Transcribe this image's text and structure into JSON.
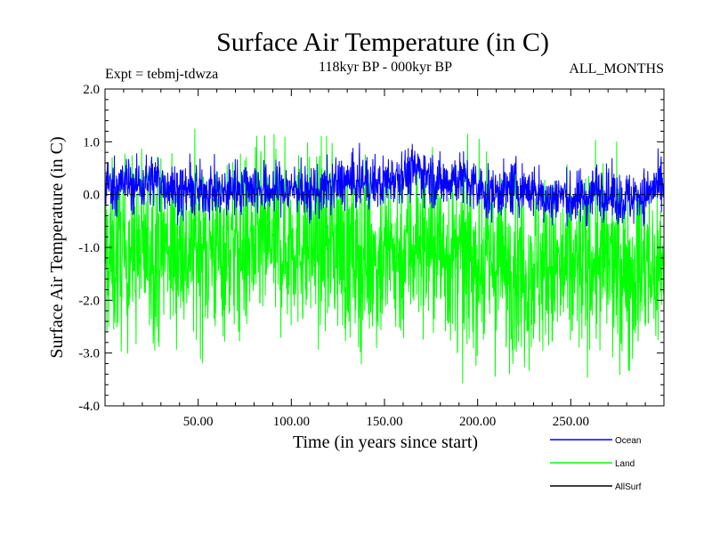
{
  "chart_data": {
    "type": "line",
    "title": "Surface Air Temperature (in C)",
    "subtitle": "118kyr BP - 000kyr BP",
    "experiment_label": "Expt = tebmj-tdwza",
    "months_label": "ALL_MONTHS",
    "xlabel": "Time (in years since start)",
    "ylabel": "Surface Air Temperature (in C)",
    "xlim": [
      0,
      300
    ],
    "ylim": [
      -4.0,
      2.0
    ],
    "x_ticks": [
      50,
      100,
      150,
      200,
      250
    ],
    "x_tick_labels": [
      "50.00",
      "100.00",
      "150.00",
      "200.00",
      "250.00"
    ],
    "y_ticks": [
      -4,
      -3,
      -2,
      -1,
      0,
      1,
      2
    ],
    "y_tick_labels": [
      "-4.0",
      "-3.0",
      "-2.0",
      "-1.0",
      "0.0",
      "1.0",
      "2.0"
    ],
    "series": [
      {
        "name": "Ocean",
        "color": "#0000ff",
        "mean": 0.2,
        "range": [
          -0.6,
          1.1
        ]
      },
      {
        "name": "Land",
        "color": "#00ff00",
        "mean": -1.2,
        "range": [
          -3.9,
          1.4
        ]
      },
      {
        "name": "AllSurf",
        "color": "#000000",
        "mean": 0.0,
        "range": [
          0.0,
          0.0
        ]
      }
    ],
    "legend_position": "bottom-right"
  }
}
